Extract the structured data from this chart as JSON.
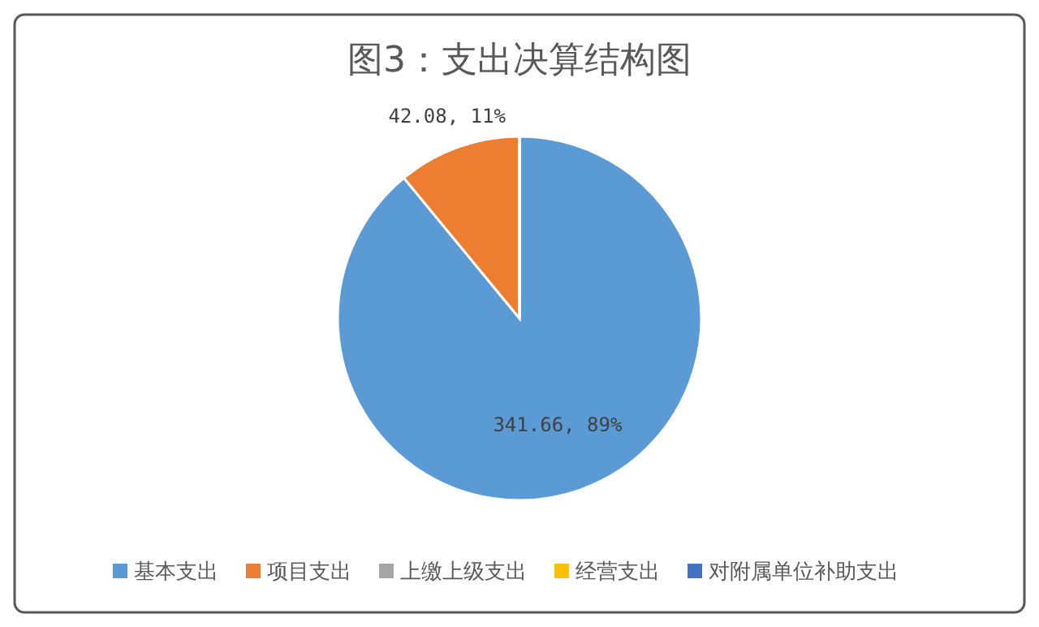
{
  "chart_data": {
    "type": "pie",
    "title": "图3：支出决算结构图",
    "categories": [
      "基本支出",
      "项目支出",
      "上缴上级支出",
      "经营支出",
      "对附属单位补助支出"
    ],
    "values": [
      341.66,
      42.08,
      0,
      0,
      0
    ],
    "colors": [
      "#5b9bd5",
      "#ed7d31",
      "#a5a5a5",
      "#ffc000",
      "#4472c4"
    ],
    "value_labels": [
      "341.66, 89%",
      "42.08, 11%",
      null,
      null,
      null
    ],
    "legend": "bottom"
  }
}
